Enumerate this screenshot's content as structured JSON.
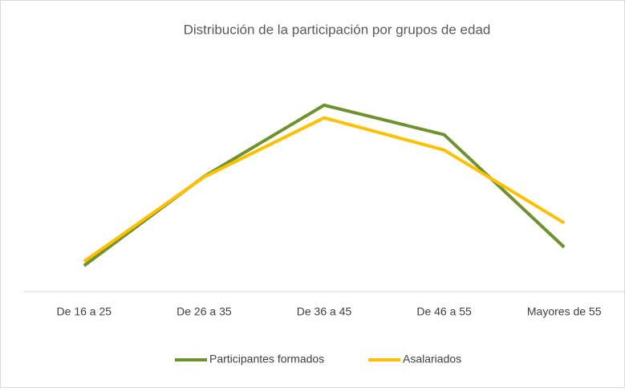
{
  "chart_data": {
    "type": "line",
    "title": "Distribución de la participación por grupos de edad",
    "categories": [
      "De 16 a 25",
      "De 26 a 35",
      "De 36 a 45",
      "De 46 a 55",
      "Mayores de 55"
    ],
    "series": [
      {
        "name": "Participantes formados",
        "color": "#6f922e",
        "values": [
          4.9,
          21.8,
          35.3,
          29.7,
          8.4
        ]
      },
      {
        "name": "Asalariados",
        "color": "#ffc000",
        "values": [
          5.7,
          21.7,
          32.9,
          26.8,
          13.0
        ]
      }
    ],
    "ylim": [
      0,
      40
    ],
    "legend": "bottom"
  }
}
